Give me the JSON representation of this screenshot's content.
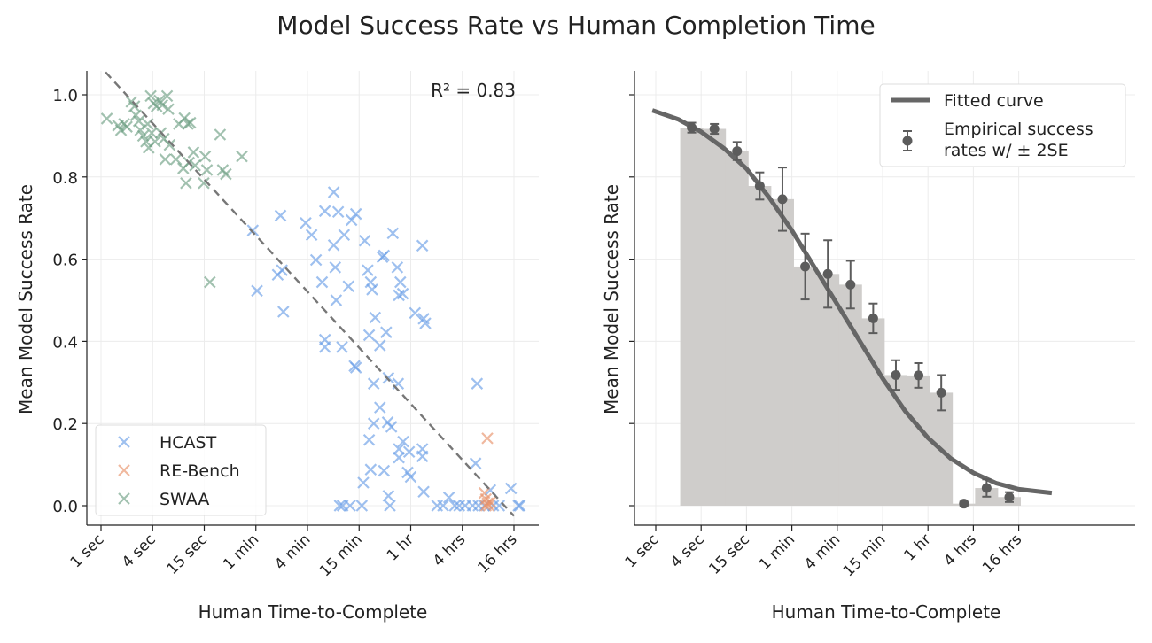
{
  "title": "Model Success Rate vs Human Completion Time",
  "chart_data": [
    {
      "type": "scatter",
      "xlabel": "Human Time-to-Complete",
      "ylabel": "Mean Model Success Rate",
      "x_scale": "log",
      "x_unit": "seconds",
      "xticks": [
        1,
        4,
        16,
        64,
        256,
        1024,
        4096,
        16384,
        65536
      ],
      "xtick_labels": [
        "1 sec",
        "4 sec",
        "15 sec",
        "1 min",
        "4 min",
        "15 min",
        "1 hr",
        "4 hrs",
        "16 hrs"
      ],
      "yticks": [
        0,
        0.2,
        0.4,
        0.6,
        0.8,
        1.0
      ],
      "ytick_labels": [
        "0.0",
        "0.2",
        "0.4",
        "0.6",
        "0.8",
        "1.0"
      ],
      "ylim": [
        -0.05,
        1.06
      ],
      "grid": true,
      "annotation": "R² = 0.83",
      "regression": {
        "style": "dashed",
        "value_at_1s": 1.067,
        "change_per_4x_time": -0.1365
      },
      "legend": {
        "placement": "bottom-left"
      },
      "series": [
        {
          "name": "HCAST",
          "color": "#6a9ee6",
          "points": [
            [
              518,
              0.763
            ],
            [
              124,
              0.706
            ],
            [
              244,
              0.688
            ],
            [
              409,
              0.717
            ],
            [
              584,
              0.715
            ],
            [
              835,
              0.695
            ],
            [
              940,
              0.71
            ],
            [
              59,
              0.67
            ],
            [
              286,
              0.659
            ],
            [
              684,
              0.659
            ],
            [
              518,
              0.634
            ],
            [
              1193,
              0.645
            ],
            [
              2535,
              0.663
            ],
            [
              5603,
              0.633
            ],
            [
              322,
              0.598
            ],
            [
              1919,
              0.605
            ],
            [
              1997,
              0.609
            ],
            [
              539,
              0.58
            ],
            [
              1290,
              0.573
            ],
            [
              2857,
              0.58
            ],
            [
              115,
              0.562
            ],
            [
              129,
              0.573
            ],
            [
              379,
              0.544
            ],
            [
              770,
              0.534
            ],
            [
              1398,
              0.544
            ],
            [
              1453,
              0.526
            ],
            [
              3100,
              0.544
            ],
            [
              2980,
              0.512
            ],
            [
              3308,
              0.516
            ],
            [
              66,
              0.523
            ],
            [
              553,
              0.5
            ],
            [
              134,
              0.472
            ],
            [
              1574,
              0.458
            ],
            [
              4596,
              0.469
            ],
            [
              5796,
              0.455
            ],
            [
              6062,
              0.444
            ],
            [
              409,
              0.404
            ],
            [
              409,
              0.386
            ],
            [
              648,
              0.386
            ],
            [
              1341,
              0.415
            ],
            [
              1792,
              0.39
            ],
            [
              2120,
              0.422
            ],
            [
              904,
              0.34
            ],
            [
              940,
              0.336
            ],
            [
              1515,
              0.297
            ],
            [
              2250,
              0.311
            ],
            [
              2924,
              0.297
            ],
            [
              24330,
              0.297
            ],
            [
              1792,
              0.239
            ],
            [
              2207,
              0.203
            ],
            [
              1515,
              0.2
            ],
            [
              2435,
              0.192
            ],
            [
              1341,
              0.16
            ],
            [
              3348,
              0.156
            ],
            [
              2980,
              0.138
            ],
            [
              3922,
              0.131
            ],
            [
              5603,
              0.138
            ],
            [
              5603,
              0.12
            ],
            [
              2980,
              0.117
            ],
            [
              23364,
              0.103
            ],
            [
              1398,
              0.088
            ],
            [
              1997,
              0.085
            ],
            [
              3768,
              0.081
            ],
            [
              4090,
              0.07
            ],
            [
              1147,
              0.056
            ],
            [
              5796,
              0.034
            ],
            [
              2250,
              0.024
            ],
            [
              2342,
              0
            ],
            [
              608,
              0
            ],
            [
              658,
              0
            ],
            [
              802,
              0
            ],
            [
              1102,
              0
            ],
            [
              8320,
              0
            ],
            [
              9770,
              0
            ],
            [
              11440,
              0.02
            ],
            [
              13400,
              0
            ],
            [
              15080,
              0
            ],
            [
              17710,
              0
            ],
            [
              21590,
              0
            ],
            [
              25290,
              0
            ],
            [
              29650,
              0
            ],
            [
              34730,
              0.038
            ],
            [
              37640,
              0
            ],
            [
              44080,
              0
            ],
            [
              60560,
              0.042
            ],
            [
              73850,
              0
            ],
            [
              76750,
              0
            ]
          ]
        },
        {
          "name": "RE-Bench",
          "color": "#e8926a",
          "points": [
            [
              32100,
              0.164
            ],
            [
              29650,
              0.031
            ],
            [
              30830,
              0.016
            ],
            [
              32100,
              0.006
            ],
            [
              33360,
              0
            ],
            [
              30830,
              0
            ],
            [
              34730,
              0.009
            ]
          ]
        },
        {
          "name": "SWAA",
          "color": "#6e9f84",
          "points": [
            [
              1.17,
              0.942
            ],
            [
              1.58,
              0.925
            ],
            [
              1.71,
              0.914
            ],
            [
              1.86,
              0.929
            ],
            [
              2.0,
              0.922
            ],
            [
              2.26,
              0.983
            ],
            [
              2.45,
              0.972
            ],
            [
              2.55,
              0.95
            ],
            [
              2.76,
              0.936
            ],
            [
              2.87,
              0.914
            ],
            [
              3.1,
              0.9
            ],
            [
              3.36,
              0.886
            ],
            [
              3.6,
              0.871
            ],
            [
              3.8,
              0.997
            ],
            [
              4.1,
              0.979
            ],
            [
              4.45,
              0.972
            ],
            [
              4.8,
              0.986
            ],
            [
              5.2,
              0.975
            ],
            [
              5.9,
              0.997
            ],
            [
              6.1,
              0.965
            ],
            [
              3.5,
              0.929
            ],
            [
              3.9,
              0.907
            ],
            [
              4.27,
              0.886
            ],
            [
              5.0,
              0.907
            ],
            [
              5.4,
              0.893
            ],
            [
              5.6,
              0.843
            ],
            [
              6.3,
              0.878
            ],
            [
              7.5,
              0.843
            ],
            [
              8.1,
              0.929
            ],
            [
              9.4,
              0.943
            ],
            [
              10.3,
              0.929
            ],
            [
              11,
              0.932
            ],
            [
              9.1,
              0.821
            ],
            [
              10.6,
              0.835
            ],
            [
              12,
              0.86
            ],
            [
              12.5,
              0.828
            ],
            [
              9.8,
              0.785
            ],
            [
              16.4,
              0.85
            ],
            [
              17.2,
              0.817
            ],
            [
              15.8,
              0.785
            ],
            [
              24.5,
              0.903
            ],
            [
              26.3,
              0.817
            ],
            [
              28.6,
              0.807
            ],
            [
              44,
              0.85
            ],
            [
              18.6,
              0.544
            ]
          ]
        }
      ]
    },
    {
      "type": "bar",
      "xlabel": "Human Time-to-Complete",
      "ylabel": "Mean Model Success Rate",
      "x_scale": "log",
      "x_unit": "seconds",
      "xticks": [
        1,
        4,
        16,
        64,
        256,
        1024,
        4096,
        16384,
        65536
      ],
      "xtick_labels": [
        "1 sec",
        "4 sec",
        "15 sec",
        "1 min",
        "4 min",
        "15 min",
        "1 hr",
        "4 hrs",
        "16 hrs"
      ],
      "yticks": [
        0,
        0.2,
        0.4,
        0.6,
        0.8,
        1.0
      ],
      "ylim": [
        -0.05,
        1.06
      ],
      "grid": true,
      "legend": {
        "placement": "top-right",
        "entries": [
          "Fitted curve",
          "Empirical success",
          "rates w/ ± 2SE"
        ]
      },
      "bar_color": "#cfcdcb",
      "marker_color": "#5c5c5c",
      "curve_color": "#666666",
      "bins": [
        {
          "x": 3,
          "value": 0.92,
          "err": 0.012
        },
        {
          "x": 6,
          "value": 0.917,
          "err": 0.012
        },
        {
          "x": 12,
          "value": 0.863,
          "err": 0.022
        },
        {
          "x": 24,
          "value": 0.778,
          "err": 0.033
        },
        {
          "x": 48,
          "value": 0.746,
          "err": 0.077
        },
        {
          "x": 96,
          "value": 0.582,
          "err": 0.08
        },
        {
          "x": 192,
          "value": 0.564,
          "err": 0.082
        },
        {
          "x": 384,
          "value": 0.538,
          "err": 0.058
        },
        {
          "x": 768,
          "value": 0.456,
          "err": 0.036
        },
        {
          "x": 1536,
          "value": 0.318,
          "err": 0.036
        },
        {
          "x": 3072,
          "value": 0.317,
          "err": 0.03
        },
        {
          "x": 6144,
          "value": 0.275,
          "err": 0.043
        },
        {
          "x": 12288,
          "value": 0.005,
          "err": 0.005
        },
        {
          "x": 24576,
          "value": 0.043,
          "err": 0.021
        },
        {
          "x": 49152,
          "value": 0.021,
          "err": 0.012
        }
      ],
      "fitted_curve": [
        [
          0.9,
          0.962
        ],
        [
          2,
          0.94
        ],
        [
          4,
          0.91
        ],
        [
          8,
          0.87
        ],
        [
          16,
          0.82
        ],
        [
          32,
          0.75
        ],
        [
          64,
          0.67
        ],
        [
          128,
          0.58
        ],
        [
          256,
          0.49
        ],
        [
          512,
          0.4
        ],
        [
          1024,
          0.31
        ],
        [
          2048,
          0.23
        ],
        [
          4096,
          0.165
        ],
        [
          8192,
          0.115
        ],
        [
          16384,
          0.08
        ],
        [
          32768,
          0.055
        ],
        [
          65536,
          0.04
        ],
        [
          180000,
          0.031
        ]
      ]
    }
  ]
}
